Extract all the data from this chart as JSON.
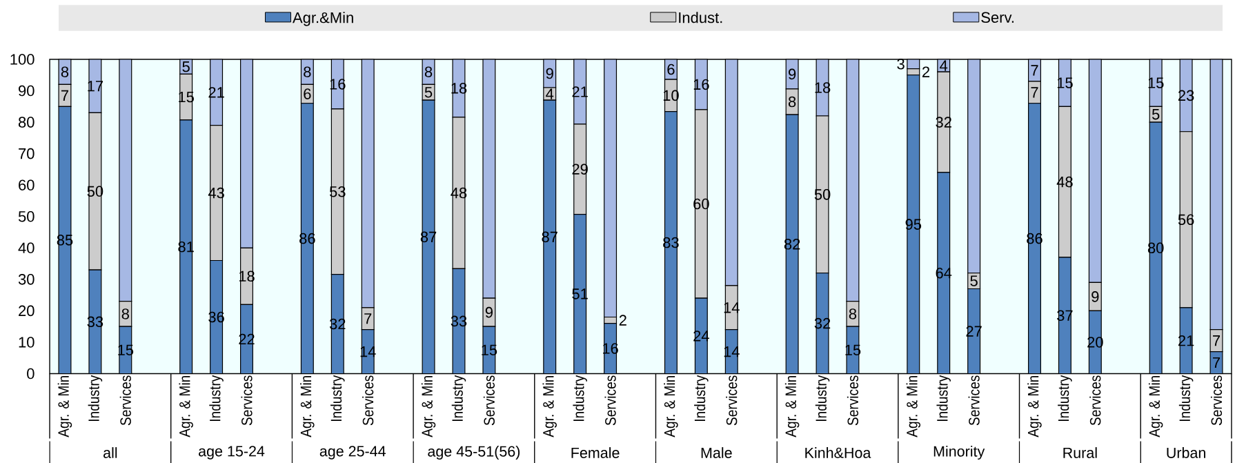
{
  "chart_data": {
    "type": "bar",
    "stacked": true,
    "categories": [
      "Agr. & Min",
      "Industry",
      "Services",
      "Agr. & Min",
      "Industry",
      "Services",
      "Agr. & Min",
      "Industry",
      "Services",
      "Agr. & Min",
      "Industry",
      "Services",
      "Agr. & Min",
      "Industry",
      "Services",
      "Agr. & Min",
      "Industry",
      "Services",
      "Agr. & Min",
      "Industry",
      "Services",
      "Agr. & Min",
      "Industry",
      "Services",
      "Agr. & Min",
      "Industry",
      "Services",
      "Agr. & Min",
      "Industry",
      "Services"
    ],
    "series": [
      {
        "name": "Agr.&Min",
        "color": "#4f81bd",
        "values": [
          85,
          33,
          15,
          80.7,
          36,
          22,
          86,
          31.6,
          14,
          87,
          33.4,
          15,
          87,
          50.7,
          16,
          83.4,
          24,
          14,
          82.4,
          32,
          15,
          95,
          64,
          27,
          86,
          37,
          20,
          80,
          21,
          7
        ],
        "value_labels": [
          "85",
          "33",
          "15",
          "81",
          "36",
          "22",
          "86",
          "32",
          "14",
          "87",
          "33",
          "15",
          "87",
          "51",
          "16",
          "83",
          "24",
          "14",
          "82",
          "32",
          "15",
          "95",
          "64",
          "27",
          "86",
          "37",
          "20",
          "80",
          "21",
          "7"
        ]
      },
      {
        "name": "Indust.",
        "color": "#cccccc",
        "values": [
          7,
          50,
          8,
          14.6,
          43,
          18,
          6,
          52.6,
          7,
          5,
          48.2,
          9,
          4,
          28.7,
          2,
          10.2,
          60,
          14,
          8.2,
          50,
          8,
          2,
          32,
          5,
          7,
          48,
          9,
          5,
          56,
          7
        ],
        "value_labels": [
          "7",
          "50",
          "8",
          "15",
          "43",
          "18",
          "6",
          "53",
          "7",
          "5",
          "48",
          "9",
          "4",
          "29",
          "2",
          "10",
          "60",
          "14",
          "8",
          "50",
          "8",
          "2",
          "32",
          "5",
          "7",
          "48",
          "9",
          "5",
          "56",
          "7"
        ]
      },
      {
        "name": "Serv.",
        "color": "#a6b8e4",
        "values": [
          8,
          17,
          77,
          4.7,
          21,
          60,
          8,
          15.8,
          79,
          8,
          18.4,
          76,
          9,
          20.6,
          82,
          6.4,
          16,
          72,
          9.4,
          18,
          77,
          3,
          4,
          68,
          7,
          15,
          71,
          15,
          23,
          86
        ],
        "value_labels": [
          "8",
          "17",
          null,
          "5",
          "21",
          null,
          "8",
          "16",
          null,
          "8",
          "18",
          null,
          "9",
          "21",
          null,
          "6",
          "16",
          null,
          "9",
          "18",
          null,
          "3",
          "4",
          null,
          "7",
          "15",
          null,
          "15",
          "23",
          null
        ]
      }
    ],
    "ylim": [
      0,
      100
    ],
    "yticks": [
      0,
      10,
      20,
      30,
      40,
      50,
      60,
      70,
      80,
      90,
      100
    ],
    "legend": "top",
    "annotations": [
      "all",
      "age 15-24",
      "age 25-44",
      "age 45-51(56)",
      "Female",
      "Male",
      "Kinh&Hoa",
      "Minority",
      "Rural",
      "Urban"
    ]
  }
}
